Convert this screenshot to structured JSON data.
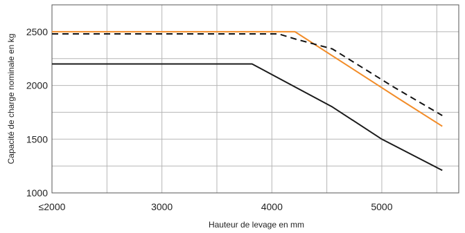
{
  "chart_data": {
    "type": "line",
    "title": "",
    "xlabel": "Hauteur de levage en mm",
    "ylabel": "Capacité de charge nominale en kg",
    "xlim": [
      2000,
      5700
    ],
    "ylim": [
      1000,
      2750
    ],
    "x_ticks": [
      2000,
      3000,
      4000,
      5000
    ],
    "x_tick_labels": [
      "≤2000",
      "3000",
      "4000",
      "5000"
    ],
    "y_ticks": [
      1000,
      1500,
      2000,
      2500
    ],
    "y_tick_labels": [
      "1000",
      "1500",
      "2000",
      "2500"
    ],
    "x_gridlines": [
      2000,
      2500,
      3000,
      3500,
      4000,
      4500,
      5000,
      5500
    ],
    "y_gridlines": [
      1000,
      1250,
      1500,
      1750,
      2000,
      2250,
      2500
    ],
    "grid": true,
    "legend": "none",
    "series": [
      {
        "color": "#f28c28",
        "dash": "solid",
        "x": [
          2000,
          4210,
          5150,
          5550
        ],
        "y": [
          2500,
          2500,
          1880,
          1620
        ]
      },
      {
        "color": "#111111",
        "dash": "dashed",
        "x": [
          2000,
          4060,
          4220,
          4550,
          5100,
          5550
        ],
        "y": [
          2480,
          2480,
          2430,
          2340,
          1990,
          1720
        ]
      },
      {
        "color": "#1a1a1a",
        "dash": "solid",
        "x": [
          2000,
          3820,
          4550,
          5000,
          5550
        ],
        "y": [
          2200,
          2200,
          1800,
          1500,
          1210
        ]
      }
    ]
  }
}
